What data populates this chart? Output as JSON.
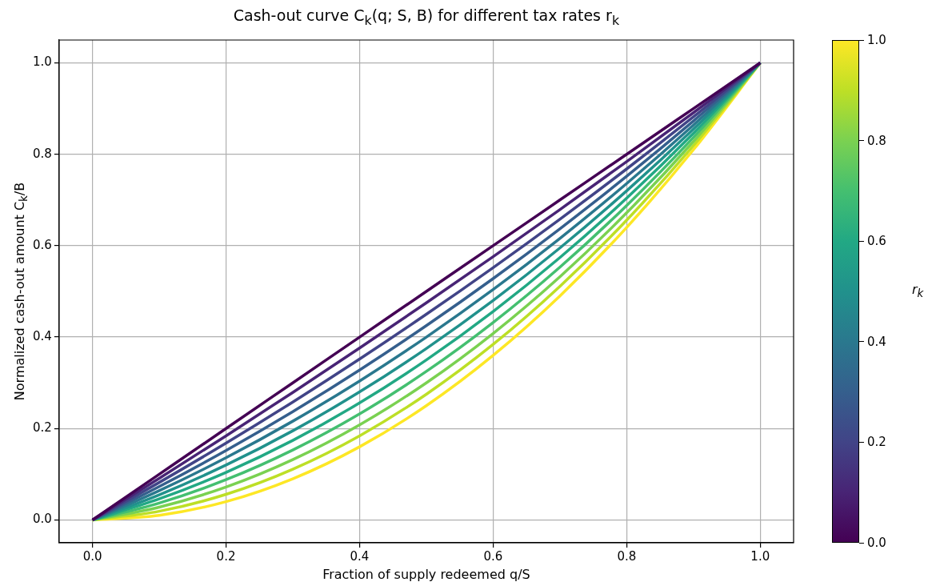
{
  "chart_data": {
    "type": "line",
    "title": "Cash-out curve C$_{k}$(q; S, B) for different tax rates r$_{k}$",
    "xlabel": "Fraction of supply redeemed q/S",
    "ylabel": "Normalized cash-out amount C$_{k}$/B",
    "clabel": "r$_{k}$",
    "clim": [
      0,
      1
    ],
    "cticks": [
      {
        "value": 0,
        "label": "0.0"
      },
      0.2,
      0.4,
      0.6,
      0.8,
      {
        "value": 1,
        "label": "1.0"
      }
    ],
    "x": [
      0,
      0.1,
      0.2,
      0.3,
      0.4,
      0.5,
      0.6,
      0.7,
      0.8,
      0.9,
      1
    ],
    "series": [
      {
        "color": "#440154",
        "values": [
          0,
          0.1,
          0.2,
          0.3,
          0.4,
          0.5,
          0.6,
          0.7,
          0.8,
          0.9,
          1
        ]
      },
      {
        "color": "#482475",
        "values": [
          0,
          0.091,
          0.184,
          0.279,
          0.376,
          0.475,
          0.576,
          0.679,
          0.784,
          0.891,
          1
        ]
      },
      {
        "color": "#414487",
        "values": [
          0,
          0.082,
          0.168,
          0.258,
          0.352,
          0.45,
          0.552,
          0.658,
          0.768,
          0.882,
          1
        ]
      },
      {
        "color": "#355f8d",
        "values": [
          0,
          0.073,
          0.152,
          0.237,
          0.328,
          0.425,
          0.528,
          0.637,
          0.752,
          0.873,
          1
        ]
      },
      {
        "color": "#2a788e",
        "values": [
          0,
          0.064,
          0.136,
          0.216,
          0.304,
          0.4,
          0.504,
          0.616,
          0.736,
          0.864,
          1
        ]
      },
      {
        "color": "#21918c",
        "values": [
          0,
          0.055,
          0.12,
          0.195,
          0.28,
          0.375,
          0.48,
          0.595,
          0.72,
          0.855,
          1
        ]
      },
      {
        "color": "#22a884",
        "values": [
          0,
          0.046,
          0.104,
          0.174,
          0.256,
          0.35,
          0.456,
          0.574,
          0.704,
          0.846,
          1
        ]
      },
      {
        "color": "#44bf70",
        "values": [
          0,
          0.037,
          0.088,
          0.153,
          0.232,
          0.325,
          0.432,
          0.553,
          0.688,
          0.837,
          1
        ]
      },
      {
        "color": "#7ad151",
        "values": [
          0,
          0.028,
          0.072,
          0.132,
          0.208,
          0.3,
          0.408,
          0.532,
          0.672,
          0.828,
          1
        ]
      },
      {
        "color": "#bddf26",
        "values": [
          0,
          0.019,
          0.056,
          0.111,
          0.184,
          0.275,
          0.384,
          0.511,
          0.656,
          0.819,
          1
        ]
      },
      {
        "color": "#fde725",
        "values": [
          0,
          0.01,
          0.04,
          0.09,
          0.16,
          0.25,
          0.36,
          0.49,
          0.64,
          0.81,
          1
        ]
      }
    ],
    "xlim": [
      -0.05,
      1.05
    ],
    "ylim": [
      -0.05,
      1.05
    ],
    "xticks": [
      {
        "value": 0,
        "label": "0.0"
      },
      0.2,
      0.4,
      0.6,
      0.8,
      {
        "value": 1,
        "label": "1.0"
      }
    ],
    "yticks": [
      {
        "value": 0,
        "label": "0.0"
      },
      0.2,
      0.4,
      0.6,
      0.8,
      {
        "value": 1,
        "label": "1.0"
      }
    ],
    "grid": true,
    "legend": false,
    "marker": "none",
    "line_style": "solid"
  }
}
